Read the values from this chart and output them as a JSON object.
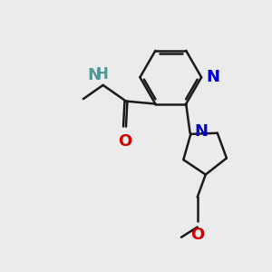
{
  "bg_color": "#ebebeb",
  "bond_color": "#1a1a1a",
  "nitrogen_color": "#0000cc",
  "oxygen_color": "#cc0000",
  "nh_color": "#4d9999",
  "line_width": 1.8,
  "font_size": 13,
  "fig_size": [
    3.0,
    3.0
  ],
  "dpi": 100,
  "xlim": [
    0,
    10
  ],
  "ylim": [
    0,
    10
  ]
}
